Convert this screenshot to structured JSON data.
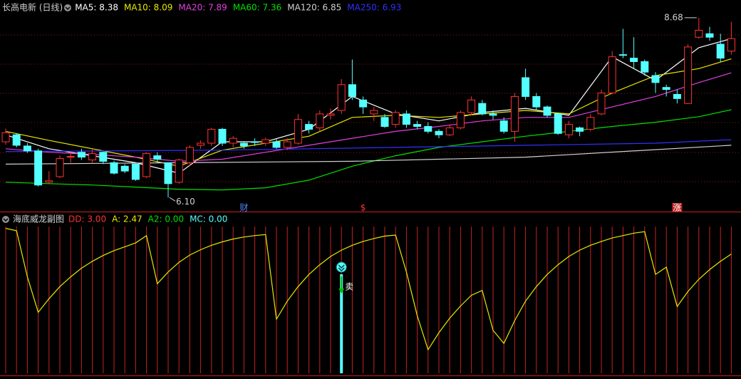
{
  "chart_data": [
    {
      "type": "candlestick",
      "title": "长高电新 (日线)",
      "up_color": "#ff3232",
      "down_color": "#54ffff",
      "open": [
        6.9,
        7.0,
        6.84,
        6.77,
        6.32,
        6.4,
        6.68,
        6.75,
        6.64,
        6.75,
        6.6,
        6.55,
        6.58,
        6.4,
        6.7,
        6.6,
        6.32,
        6.6,
        6.85,
        6.88,
        7.08,
        6.88,
        6.88,
        6.9,
        6.88,
        6.9,
        6.82,
        6.88,
        7.15,
        7.1,
        7.28,
        7.35,
        7.72,
        7.5,
        7.3,
        7.25,
        7.15,
        7.3,
        7.15,
        7.12,
        7.05,
        7.0,
        7.1,
        7.32,
        7.45,
        7.3,
        7.2,
        7.05,
        7.82,
        7.55,
        7.4,
        7.3,
        7.0,
        7.1,
        7.08,
        7.3,
        7.6,
        8.15,
        8.1,
        8.05,
        7.85,
        7.68,
        7.58,
        7.45,
        8.4,
        8.45,
        8.3,
        8.2
      ],
      "high": [
        7.09,
        7.02,
        6.88,
        6.8,
        6.48,
        6.7,
        6.76,
        6.8,
        6.8,
        6.76,
        6.63,
        6.58,
        6.6,
        6.75,
        6.75,
        6.6,
        6.66,
        6.85,
        6.92,
        7.1,
        7.1,
        6.98,
        6.9,
        6.95,
        6.96,
        6.94,
        6.95,
        7.3,
        7.2,
        7.35,
        7.38,
        7.8,
        8.08,
        7.55,
        7.4,
        7.3,
        7.35,
        7.35,
        7.2,
        7.18,
        7.08,
        7.15,
        7.35,
        7.55,
        7.5,
        7.35,
        7.25,
        7.6,
        7.95,
        7.6,
        7.42,
        7.32,
        7.2,
        7.12,
        7.3,
        7.65,
        8.2,
        8.52,
        8.4,
        8.08,
        7.9,
        7.72,
        7.65,
        8.3,
        8.68,
        8.55,
        8.45,
        8.62
      ],
      "low": [
        6.86,
        6.82,
        6.74,
        6.26,
        6.3,
        6.38,
        6.6,
        6.64,
        6.6,
        6.58,
        6.43,
        6.45,
        6.34,
        6.38,
        6.6,
        6.1,
        6.3,
        6.55,
        6.8,
        6.84,
        6.84,
        6.82,
        6.8,
        6.84,
        6.84,
        6.8,
        6.78,
        6.86,
        7.02,
        7.05,
        7.22,
        7.3,
        7.5,
        7.3,
        7.2,
        7.1,
        7.1,
        7.1,
        7.08,
        7.02,
        6.95,
        6.98,
        7.08,
        7.28,
        7.28,
        7.22,
        7.02,
        6.9,
        7.5,
        7.35,
        7.25,
        7.0,
        6.95,
        6.98,
        7.05,
        7.28,
        7.58,
        8.1,
        7.95,
        7.85,
        7.6,
        7.55,
        7.45,
        7.44,
        8.38,
        8.35,
        8.05,
        8.15
      ],
      "close": [
        7.03,
        6.85,
        6.77,
        6.28,
        6.34,
        6.66,
        6.69,
        6.68,
        6.73,
        6.62,
        6.45,
        6.48,
        6.36,
        6.73,
        6.65,
        6.3,
        6.64,
        6.82,
        6.88,
        7.08,
        6.88,
        6.95,
        6.84,
        6.9,
        6.93,
        6.82,
        6.9,
        7.22,
        7.08,
        7.3,
        7.3,
        7.72,
        7.55,
        7.4,
        7.35,
        7.12,
        7.32,
        7.15,
        7.12,
        7.05,
        7.0,
        7.1,
        7.32,
        7.5,
        7.3,
        7.28,
        7.05,
        7.55,
        7.55,
        7.4,
        7.28,
        7.02,
        7.15,
        7.05,
        7.25,
        7.6,
        8.12,
        8.15,
        8.05,
        7.9,
        7.75,
        7.65,
        7.52,
        8.26,
        8.5,
        8.4,
        8.1,
        8.38
      ],
      "ylim": [
        5.95,
        8.75
      ],
      "low_label": "6.10",
      "high_label": "8.68",
      "series": [
        {
          "name": "MA5: 8.38",
          "color": "#ffffff",
          "x": [
            0,
            4,
            8,
            12,
            16,
            20,
            24,
            28,
            32,
            36,
            40,
            44,
            48,
            52,
            56,
            60,
            64,
            67
          ],
          "values": [
            7.0,
            6.8,
            6.7,
            6.6,
            6.45,
            6.9,
            6.9,
            7.08,
            7.55,
            7.3,
            7.2,
            7.32,
            7.38,
            7.28,
            8.12,
            7.78,
            8.25,
            8.38
          ]
        },
        {
          "name": "MA10: 8.09",
          "color": "#e8e800",
          "x": [
            0,
            4,
            8,
            12,
            16,
            20,
            24,
            28,
            32,
            36,
            40,
            44,
            48,
            52,
            56,
            60,
            64,
            67
          ],
          "values": [
            7.05,
            6.92,
            6.8,
            6.68,
            6.55,
            6.78,
            6.88,
            6.98,
            7.25,
            7.28,
            7.25,
            7.3,
            7.35,
            7.3,
            7.6,
            7.85,
            7.95,
            8.09
          ]
        },
        {
          "name": "MA20: 7.89",
          "color": "#e040e0",
          "x": [
            0,
            4,
            8,
            12,
            16,
            20,
            24,
            28,
            32,
            36,
            40,
            44,
            48,
            52,
            56,
            60,
            64,
            67
          ],
          "values": [
            6.8,
            6.75,
            6.72,
            6.68,
            6.62,
            6.65,
            6.75,
            6.85,
            6.95,
            7.05,
            7.12,
            7.2,
            7.25,
            7.25,
            7.4,
            7.55,
            7.75,
            7.89
          ]
        },
        {
          "name": "MA60: 7.36",
          "color": "#00e000",
          "x": [
            0,
            4,
            8,
            12,
            16,
            20,
            24,
            28,
            32,
            36,
            40,
            44,
            48,
            52,
            56,
            60,
            64,
            67
          ],
          "values": [
            6.32,
            6.3,
            6.28,
            6.25,
            6.22,
            6.21,
            6.24,
            6.35,
            6.55,
            6.7,
            6.82,
            6.9,
            6.98,
            7.05,
            7.12,
            7.18,
            7.26,
            7.36
          ]
        },
        {
          "name": "MA120: 6.85",
          "color": "#d0d0d0",
          "x": [
            0,
            16,
            32,
            48,
            67
          ],
          "values": [
            6.58,
            6.6,
            6.62,
            6.68,
            6.85
          ]
        },
        {
          "name": "MA250: 6.93",
          "color": "#3030ff",
          "x": [
            0,
            20,
            40,
            60,
            67
          ],
          "values": [
            6.76,
            6.78,
            6.83,
            6.88,
            6.93
          ]
        }
      ],
      "events": [
        {
          "label": "财",
          "index": 22,
          "color": "#4d8bff"
        },
        {
          "label": "$",
          "index": 33,
          "color": "#ff3232"
        },
        {
          "label": "涨",
          "index": 62,
          "color": "#ffffff",
          "background": "#c02020"
        }
      ]
    },
    {
      "type": "line",
      "title": "海底威龙副图",
      "ylim": [
        0,
        3.3
      ],
      "series": [
        {
          "name": "DD: 3.00",
          "color": "#ff3232"
        },
        {
          "name": "A: 2.47",
          "color": "#e8e800",
          "values": [
            3.0,
            2.95,
            2.0,
            1.27,
            1.55,
            1.8,
            2.0,
            2.18,
            2.32,
            2.44,
            2.54,
            2.62,
            2.7,
            2.85,
            1.86,
            2.1,
            2.3,
            2.45,
            2.56,
            2.65,
            2.72,
            2.78,
            2.82,
            2.85,
            2.87,
            1.13,
            1.5,
            1.8,
            2.05,
            2.25,
            2.42,
            2.55,
            2.65,
            2.73,
            2.79,
            2.84,
            2.86,
            2.1,
            1.2,
            0.5,
            0.85,
            1.15,
            1.4,
            1.62,
            1.72,
            0.9,
            0.63,
            1.1,
            1.5,
            1.8,
            2.05,
            2.25,
            2.42,
            2.55,
            2.65,
            2.73,
            2.8,
            2.85,
            2.9,
            2.93,
            2.05,
            2.2,
            1.39,
            1.7,
            1.95,
            2.15,
            2.32,
            2.47
          ]
        },
        {
          "name": "A2: 0.00",
          "color": "#00e000"
        },
        {
          "name": "MC: 0.00",
          "color": "#54ffff"
        }
      ],
      "signal": {
        "label": "卖",
        "index": 31,
        "color": "#54ffff"
      }
    }
  ]
}
